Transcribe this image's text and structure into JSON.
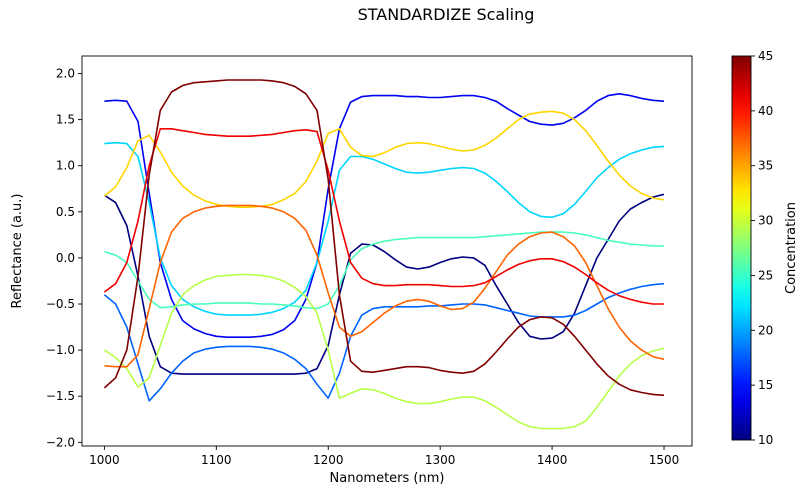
{
  "chart_data": {
    "type": "line",
    "title": "STANDARDIZE Scaling",
    "xlabel": "Nanometers (nm)",
    "ylabel": "Reflectance (a.u.)",
    "xlim": [
      980,
      1525
    ],
    "ylim": [
      -2.04,
      2.19
    ],
    "xticks": [
      1000,
      1100,
      1200,
      1300,
      1400,
      1500
    ],
    "yticks": [
      -2.0,
      -1.5,
      -1.0,
      -0.5,
      0.0,
      0.5,
      1.0,
      1.5,
      2.0
    ],
    "grid": false,
    "colorbar": {
      "label": "Concentration",
      "range": [
        10,
        45
      ],
      "ticks": [
        10,
        15,
        20,
        25,
        30,
        35,
        40,
        45
      ],
      "colormap": "jet"
    },
    "x_start": 1000,
    "x_step": 10,
    "series": [
      {
        "name": "10.0",
        "concentration": 10.0,
        "values": [
          0.68,
          0.6,
          0.35,
          -0.2,
          -0.85,
          -1.18,
          -1.25,
          -1.26,
          -1.26,
          -1.26,
          -1.26,
          -1.26,
          -1.26,
          -1.26,
          -1.26,
          -1.26,
          -1.26,
          -1.26,
          -1.25,
          -1.2,
          -0.95,
          -0.4,
          0.05,
          0.15,
          0.14,
          0.07,
          -0.02,
          -0.1,
          -0.12,
          -0.1,
          -0.05,
          -0.01,
          0.01,
          0.0,
          -0.08,
          -0.3,
          -0.5,
          -0.7,
          -0.85,
          -0.88,
          -0.87,
          -0.8,
          -0.6,
          -0.3,
          0.0,
          0.2,
          0.4,
          0.53,
          0.6,
          0.66,
          0.69
        ]
      },
      {
        "name": "13.9",
        "concentration": 13.9,
        "values": [
          1.7,
          1.71,
          1.7,
          1.48,
          0.7,
          -0.05,
          -0.45,
          -0.68,
          -0.77,
          -0.82,
          -0.85,
          -0.86,
          -0.86,
          -0.86,
          -0.85,
          -0.83,
          -0.78,
          -0.68,
          -0.45,
          -0.05,
          0.75,
          1.4,
          1.69,
          1.75,
          1.76,
          1.76,
          1.76,
          1.75,
          1.75,
          1.74,
          1.74,
          1.75,
          1.76,
          1.76,
          1.74,
          1.7,
          1.62,
          1.55,
          1.48,
          1.45,
          1.44,
          1.46,
          1.52,
          1.6,
          1.7,
          1.76,
          1.78,
          1.76,
          1.73,
          1.71,
          1.7
        ]
      },
      {
        "name": "17.8",
        "concentration": 17.8,
        "values": [
          -0.4,
          -0.5,
          -0.75,
          -1.15,
          -1.55,
          -1.42,
          -1.25,
          -1.12,
          -1.03,
          -0.99,
          -0.97,
          -0.96,
          -0.96,
          -0.96,
          -0.97,
          -0.99,
          -1.03,
          -1.1,
          -1.2,
          -1.37,
          -1.52,
          -1.25,
          -0.85,
          -0.62,
          -0.55,
          -0.53,
          -0.53,
          -0.53,
          -0.53,
          -0.52,
          -0.52,
          -0.51,
          -0.5,
          -0.5,
          -0.51,
          -0.54,
          -0.57,
          -0.6,
          -0.63,
          -0.64,
          -0.64,
          -0.64,
          -0.62,
          -0.57,
          -0.5,
          -0.43,
          -0.38,
          -0.34,
          -0.31,
          -0.29,
          -0.28
        ]
      },
      {
        "name": "21.7",
        "concentration": 21.7,
        "values": [
          1.24,
          1.25,
          1.24,
          1.1,
          0.6,
          0.0,
          -0.3,
          -0.45,
          -0.53,
          -0.58,
          -0.61,
          -0.62,
          -0.62,
          -0.62,
          -0.61,
          -0.59,
          -0.55,
          -0.48,
          -0.35,
          -0.05,
          0.4,
          0.95,
          1.1,
          1.1,
          1.07,
          1.02,
          0.97,
          0.93,
          0.92,
          0.93,
          0.95,
          0.97,
          0.98,
          0.97,
          0.92,
          0.83,
          0.72,
          0.6,
          0.5,
          0.45,
          0.44,
          0.48,
          0.58,
          0.72,
          0.87,
          0.98,
          1.07,
          1.13,
          1.17,
          1.2,
          1.21
        ]
      },
      {
        "name": "25.6",
        "concentration": 25.6,
        "values": [
          0.07,
          0.03,
          -0.05,
          -0.25,
          -0.45,
          -0.54,
          -0.53,
          -0.51,
          -0.5,
          -0.5,
          -0.49,
          -0.49,
          -0.49,
          -0.49,
          -0.5,
          -0.5,
          -0.51,
          -0.52,
          -0.54,
          -0.55,
          -0.5,
          -0.3,
          -0.02,
          0.1,
          0.15,
          0.18,
          0.2,
          0.21,
          0.22,
          0.22,
          0.22,
          0.22,
          0.22,
          0.22,
          0.23,
          0.24,
          0.25,
          0.26,
          0.27,
          0.28,
          0.28,
          0.28,
          0.27,
          0.25,
          0.22,
          0.19,
          0.17,
          0.15,
          0.14,
          0.13,
          0.13
        ]
      },
      {
        "name": "29.4",
        "concentration": 29.4,
        "values": [
          -1.0,
          -1.08,
          -1.2,
          -1.4,
          -1.3,
          -0.95,
          -0.6,
          -0.4,
          -0.3,
          -0.24,
          -0.2,
          -0.19,
          -0.18,
          -0.18,
          -0.19,
          -0.21,
          -0.25,
          -0.32,
          -0.42,
          -0.6,
          -1.0,
          -1.52,
          -1.47,
          -1.42,
          -1.43,
          -1.47,
          -1.52,
          -1.56,
          -1.58,
          -1.58,
          -1.56,
          -1.53,
          -1.51,
          -1.51,
          -1.55,
          -1.62,
          -1.7,
          -1.78,
          -1.83,
          -1.85,
          -1.85,
          -1.85,
          -1.83,
          -1.77,
          -1.62,
          -1.45,
          -1.28,
          -1.15,
          -1.06,
          -1.01,
          -0.98
        ]
      },
      {
        "name": "33.3",
        "concentration": 33.3,
        "values": [
          0.67,
          0.77,
          0.98,
          1.27,
          1.33,
          1.15,
          0.93,
          0.78,
          0.68,
          0.62,
          0.58,
          0.56,
          0.55,
          0.55,
          0.56,
          0.58,
          0.63,
          0.7,
          0.83,
          1.05,
          1.35,
          1.4,
          1.2,
          1.11,
          1.1,
          1.14,
          1.2,
          1.24,
          1.25,
          1.24,
          1.21,
          1.18,
          1.16,
          1.17,
          1.22,
          1.3,
          1.4,
          1.5,
          1.56,
          1.58,
          1.59,
          1.57,
          1.5,
          1.38,
          1.22,
          1.05,
          0.9,
          0.78,
          0.7,
          0.65,
          0.63
        ]
      },
      {
        "name": "37.2",
        "concentration": 37.2,
        "values": [
          -1.17,
          -1.18,
          -1.18,
          -1.05,
          -0.55,
          -0.05,
          0.28,
          0.43,
          0.5,
          0.54,
          0.56,
          0.57,
          0.57,
          0.57,
          0.56,
          0.54,
          0.5,
          0.43,
          0.3,
          0.03,
          -0.38,
          -0.75,
          -0.85,
          -0.8,
          -0.7,
          -0.6,
          -0.52,
          -0.47,
          -0.45,
          -0.47,
          -0.52,
          -0.56,
          -0.55,
          -0.48,
          -0.33,
          -0.15,
          0.03,
          0.15,
          0.23,
          0.27,
          0.28,
          0.23,
          0.13,
          -0.05,
          -0.3,
          -0.55,
          -0.75,
          -0.9,
          -1.0,
          -1.07,
          -1.1
        ]
      },
      {
        "name": "41.1",
        "concentration": 41.1,
        "values": [
          -0.37,
          -0.28,
          -0.05,
          0.4,
          1.0,
          1.4,
          1.4,
          1.38,
          1.36,
          1.34,
          1.33,
          1.32,
          1.32,
          1.32,
          1.33,
          1.34,
          1.36,
          1.38,
          1.39,
          1.37,
          0.95,
          0.4,
          -0.05,
          -0.22,
          -0.28,
          -0.3,
          -0.3,
          -0.29,
          -0.29,
          -0.29,
          -0.3,
          -0.31,
          -0.31,
          -0.3,
          -0.27,
          -0.2,
          -0.13,
          -0.07,
          -0.03,
          -0.01,
          -0.01,
          -0.04,
          -0.1,
          -0.18,
          -0.27,
          -0.35,
          -0.41,
          -0.45,
          -0.48,
          -0.5,
          -0.5
        ]
      },
      {
        "name": "45.0",
        "concentration": 45.0,
        "values": [
          -1.41,
          -1.3,
          -1.0,
          -0.2,
          0.9,
          1.6,
          1.8,
          1.87,
          1.9,
          1.91,
          1.92,
          1.93,
          1.93,
          1.93,
          1.93,
          1.92,
          1.9,
          1.86,
          1.78,
          1.6,
          0.85,
          -0.4,
          -1.12,
          -1.23,
          -1.24,
          -1.22,
          -1.2,
          -1.18,
          -1.18,
          -1.19,
          -1.22,
          -1.24,
          -1.25,
          -1.23,
          -1.15,
          -1.02,
          -0.88,
          -0.75,
          -0.67,
          -0.64,
          -0.65,
          -0.72,
          -0.85,
          -1.0,
          -1.15,
          -1.28,
          -1.37,
          -1.43,
          -1.46,
          -1.48,
          -1.49
        ]
      }
    ]
  }
}
